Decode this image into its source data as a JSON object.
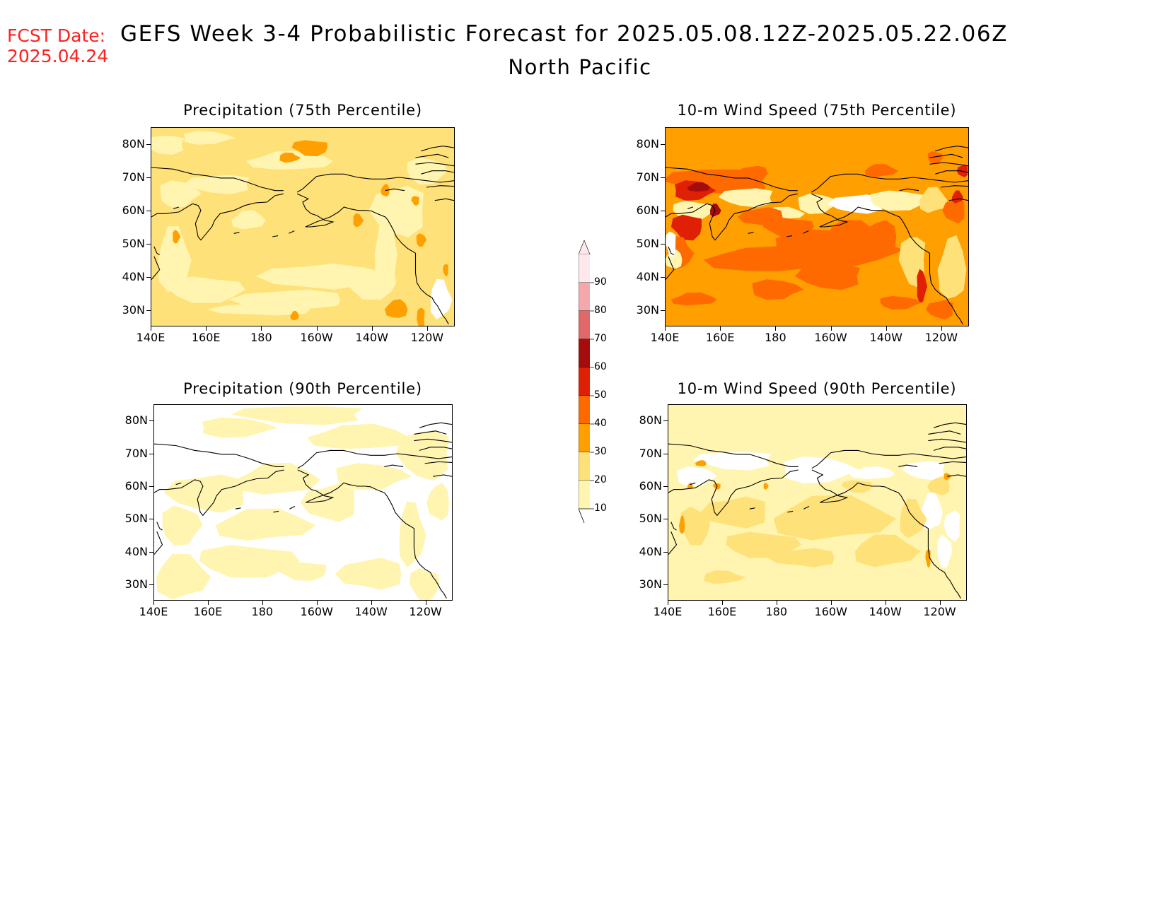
{
  "header": {
    "fcst_label": "FCST Date:",
    "fcst_date": "2025.04.24",
    "title": "GEFS Week 3-4 Probabilistic Forecast for 2025.05.08.12Z-2025.05.22.06Z",
    "subtitle": "North Pacific",
    "fcst_color": "#ff2020"
  },
  "panels": [
    {
      "title": "Precipitation (75th Percentile)",
      "field": "precip75"
    },
    {
      "title": "10-m Wind Speed (75th Percentile)",
      "field": "wind75"
    },
    {
      "title": "Precipitation (90th Percentile)",
      "field": "precip90"
    },
    {
      "title": "10-m Wind Speed (90th Percentile)",
      "field": "wind90"
    }
  ],
  "axes": {
    "lat_labels": [
      "80N",
      "70N",
      "60N",
      "50N",
      "40N",
      "30N"
    ],
    "lon_labels": [
      "140E",
      "160E",
      "180",
      "160W",
      "140W",
      "120W"
    ]
  },
  "colorbar": {
    "labels": [
      "90",
      "80",
      "70",
      "60",
      "50",
      "40",
      "30",
      "20",
      "10"
    ],
    "colors": [
      "#ffe8ec",
      "#f4a8ae",
      "#e06868",
      "#a50d0d",
      "#e02005",
      "#ff6a00",
      "#ff9f00",
      "#ffe17a",
      "#fff5b0"
    ]
  }
}
